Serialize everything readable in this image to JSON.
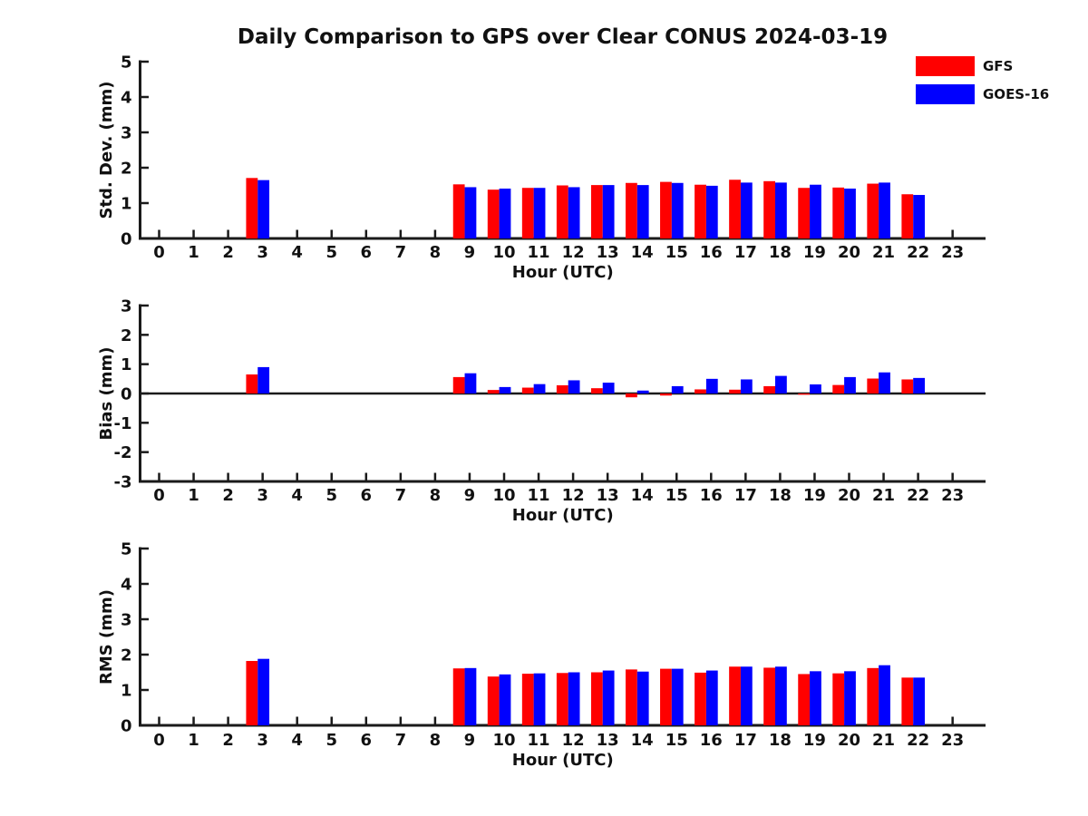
{
  "title": "Daily Comparison to GPS over Clear CONUS 2024-03-19",
  "legend": {
    "position": "top-right",
    "items": [
      {
        "label": "GFS",
        "color": "#ff0000"
      },
      {
        "label": "GOES-16",
        "color": "#0000ff"
      }
    ]
  },
  "colors": {
    "gfs": "#ff0000",
    "goes16": "#0000ff",
    "axis": "#1a1a1a",
    "text": "#111111",
    "background": "#ffffff"
  },
  "chart_data": [
    {
      "type": "bar",
      "name": "std-dev",
      "xlabel": "Hour (UTC)",
      "ylabel": "Std. Dev. (mm)",
      "ylim": [
        0,
        5
      ],
      "yticks": [
        0,
        1,
        2,
        3,
        4,
        5
      ],
      "grid": false,
      "zero_line": false,
      "categories": [
        0,
        1,
        2,
        3,
        4,
        5,
        6,
        7,
        8,
        9,
        10,
        11,
        12,
        13,
        14,
        15,
        16,
        17,
        18,
        19,
        20,
        21,
        22,
        23
      ],
      "series": [
        {
          "name": "GFS",
          "color": "#ff0000",
          "values": [
            null,
            null,
            null,
            1.71,
            null,
            null,
            null,
            null,
            null,
            1.53,
            1.38,
            1.43,
            1.5,
            1.51,
            1.57,
            1.6,
            1.52,
            1.66,
            1.62,
            1.43,
            1.44,
            1.55,
            1.25,
            null
          ]
        },
        {
          "name": "GOES-16",
          "color": "#0000ff",
          "values": [
            null,
            null,
            null,
            1.65,
            null,
            null,
            null,
            null,
            null,
            1.45,
            1.41,
            1.43,
            1.45,
            1.51,
            1.51,
            1.57,
            1.49,
            1.58,
            1.58,
            1.52,
            1.41,
            1.58,
            1.23,
            null
          ]
        }
      ]
    },
    {
      "type": "bar",
      "name": "bias",
      "xlabel": "Hour (UTC)",
      "ylabel": "Bias (mm)",
      "ylim": [
        -3,
        3
      ],
      "yticks": [
        -3,
        -2,
        -1,
        0,
        1,
        2,
        3
      ],
      "grid": false,
      "zero_line": true,
      "categories": [
        0,
        1,
        2,
        3,
        4,
        5,
        6,
        7,
        8,
        9,
        10,
        11,
        12,
        13,
        14,
        15,
        16,
        17,
        18,
        19,
        20,
        21,
        22,
        23
      ],
      "series": [
        {
          "name": "GFS",
          "color": "#ff0000",
          "values": [
            null,
            null,
            null,
            0.65,
            null,
            null,
            null,
            null,
            null,
            0.56,
            0.12,
            0.2,
            0.28,
            0.18,
            -0.13,
            -0.07,
            0.14,
            0.13,
            0.25,
            -0.04,
            0.29,
            0.51,
            0.48,
            null
          ]
        },
        {
          "name": "GOES-16",
          "color": "#0000ff",
          "values": [
            null,
            null,
            null,
            0.9,
            null,
            null,
            null,
            null,
            null,
            0.69,
            0.22,
            0.32,
            0.45,
            0.37,
            0.1,
            0.25,
            0.5,
            0.48,
            0.6,
            0.31,
            0.56,
            0.72,
            0.53,
            null
          ]
        }
      ]
    },
    {
      "type": "bar",
      "name": "rms",
      "xlabel": "Hour (UTC)",
      "ylabel": "RMS (mm)",
      "ylim": [
        0,
        5
      ],
      "yticks": [
        0,
        1,
        2,
        3,
        4,
        5
      ],
      "grid": false,
      "zero_line": false,
      "categories": [
        0,
        1,
        2,
        3,
        4,
        5,
        6,
        7,
        8,
        9,
        10,
        11,
        12,
        13,
        14,
        15,
        16,
        17,
        18,
        19,
        20,
        21,
        22,
        23
      ],
      "series": [
        {
          "name": "GFS",
          "color": "#ff0000",
          "values": [
            null,
            null,
            null,
            1.82,
            null,
            null,
            null,
            null,
            null,
            1.61,
            1.38,
            1.46,
            1.48,
            1.5,
            1.58,
            1.6,
            1.49,
            1.66,
            1.63,
            1.45,
            1.47,
            1.62,
            1.35,
            null
          ]
        },
        {
          "name": "GOES-16",
          "color": "#0000ff",
          "values": [
            null,
            null,
            null,
            1.88,
            null,
            null,
            null,
            null,
            null,
            1.62,
            1.44,
            1.47,
            1.5,
            1.55,
            1.52,
            1.6,
            1.55,
            1.66,
            1.66,
            1.53,
            1.53,
            1.7,
            1.35,
            null
          ]
        }
      ]
    }
  ]
}
